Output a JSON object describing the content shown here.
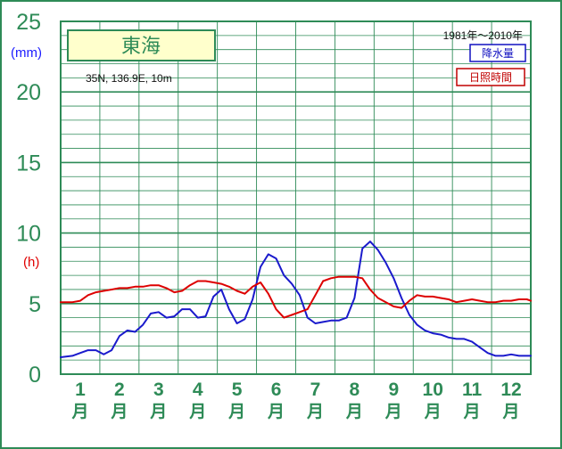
{
  "chart_data": {
    "type": "line",
    "title": "東海",
    "subtitle": "35N, 136.9E, 10m",
    "period": "1981年〜2010年",
    "y_unit_left": "(mm)",
    "y_unit_right": "(h)",
    "ylim": [
      0,
      25
    ],
    "y_ticks": [
      "0",
      "5",
      "10",
      "15",
      "20",
      "25"
    ],
    "x_range": [
      0.5,
      12.5
    ],
    "months": [
      "1",
      "2",
      "3",
      "4",
      "5",
      "6",
      "7",
      "8",
      "9",
      "10",
      "11",
      "12"
    ],
    "month_suffix": "月",
    "grid": true,
    "legend": {
      "position": "top-right",
      "entries": [
        "降水量",
        "日照時間"
      ]
    },
    "series": [
      {
        "name": "降水量",
        "color": "#1a1acc",
        "x": [
          0.5,
          0.8,
          1.0,
          1.2,
          1.4,
          1.6,
          1.8,
          2.0,
          2.2,
          2.4,
          2.6,
          2.8,
          3.0,
          3.2,
          3.4,
          3.6,
          3.8,
          4.0,
          4.2,
          4.4,
          4.6,
          4.8,
          5.0,
          5.2,
          5.4,
          5.6,
          5.8,
          6.0,
          6.2,
          6.4,
          6.6,
          6.8,
          7.0,
          7.2,
          7.4,
          7.6,
          7.8,
          8.0,
          8.2,
          8.4,
          8.6,
          8.8,
          9.0,
          9.2,
          9.4,
          9.6,
          9.8,
          10.0,
          10.2,
          10.4,
          10.6,
          10.8,
          11.0,
          11.2,
          11.4,
          11.6,
          11.8,
          12.0,
          12.2,
          12.4,
          12.5
        ],
        "values": [
          1.2,
          1.3,
          1.5,
          1.7,
          1.7,
          1.4,
          1.7,
          2.7,
          3.1,
          3.0,
          3.5,
          4.3,
          4.4,
          4.0,
          4.1,
          4.6,
          4.6,
          4.0,
          4.1,
          5.5,
          6.0,
          4.6,
          3.6,
          3.9,
          5.3,
          7.6,
          8.5,
          8.2,
          7.0,
          6.4,
          5.6,
          4.0,
          3.6,
          3.7,
          3.8,
          3.8,
          4.0,
          5.4,
          8.9,
          9.4,
          8.8,
          7.9,
          6.8,
          5.4,
          4.2,
          3.5,
          3.1,
          2.9,
          2.8,
          2.6,
          2.5,
          2.5,
          2.3,
          1.9,
          1.5,
          1.3,
          1.3,
          1.4,
          1.3,
          1.3,
          1.3
        ]
      },
      {
        "name": "日照時間",
        "color": "#dd0000",
        "x": [
          0.5,
          0.8,
          1.0,
          1.2,
          1.4,
          1.6,
          1.8,
          2.0,
          2.2,
          2.4,
          2.6,
          2.8,
          3.0,
          3.2,
          3.4,
          3.6,
          3.8,
          4.0,
          4.2,
          4.4,
          4.6,
          4.8,
          5.0,
          5.2,
          5.4,
          5.6,
          5.8,
          6.0,
          6.2,
          6.4,
          6.6,
          6.8,
          7.0,
          7.2,
          7.4,
          7.6,
          7.8,
          8.0,
          8.2,
          8.4,
          8.6,
          8.8,
          9.0,
          9.2,
          9.4,
          9.6,
          9.8,
          10.0,
          10.2,
          10.4,
          10.6,
          10.8,
          11.0,
          11.2,
          11.4,
          11.6,
          11.8,
          12.0,
          12.2,
          12.4,
          12.5
        ],
        "values": [
          5.1,
          5.1,
          5.2,
          5.6,
          5.8,
          5.9,
          6.0,
          6.1,
          6.1,
          6.2,
          6.2,
          6.3,
          6.3,
          6.1,
          5.8,
          5.9,
          6.3,
          6.6,
          6.6,
          6.5,
          6.4,
          6.2,
          5.9,
          5.7,
          6.2,
          6.5,
          5.7,
          4.6,
          4.0,
          4.2,
          4.4,
          4.6,
          5.6,
          6.6,
          6.8,
          6.9,
          6.9,
          6.9,
          6.8,
          6.0,
          5.4,
          5.1,
          4.8,
          4.7,
          5.2,
          5.6,
          5.5,
          5.5,
          5.4,
          5.3,
          5.1,
          5.2,
          5.3,
          5.2,
          5.1,
          5.1,
          5.2,
          5.2,
          5.3,
          5.3,
          5.2
        ]
      }
    ]
  }
}
